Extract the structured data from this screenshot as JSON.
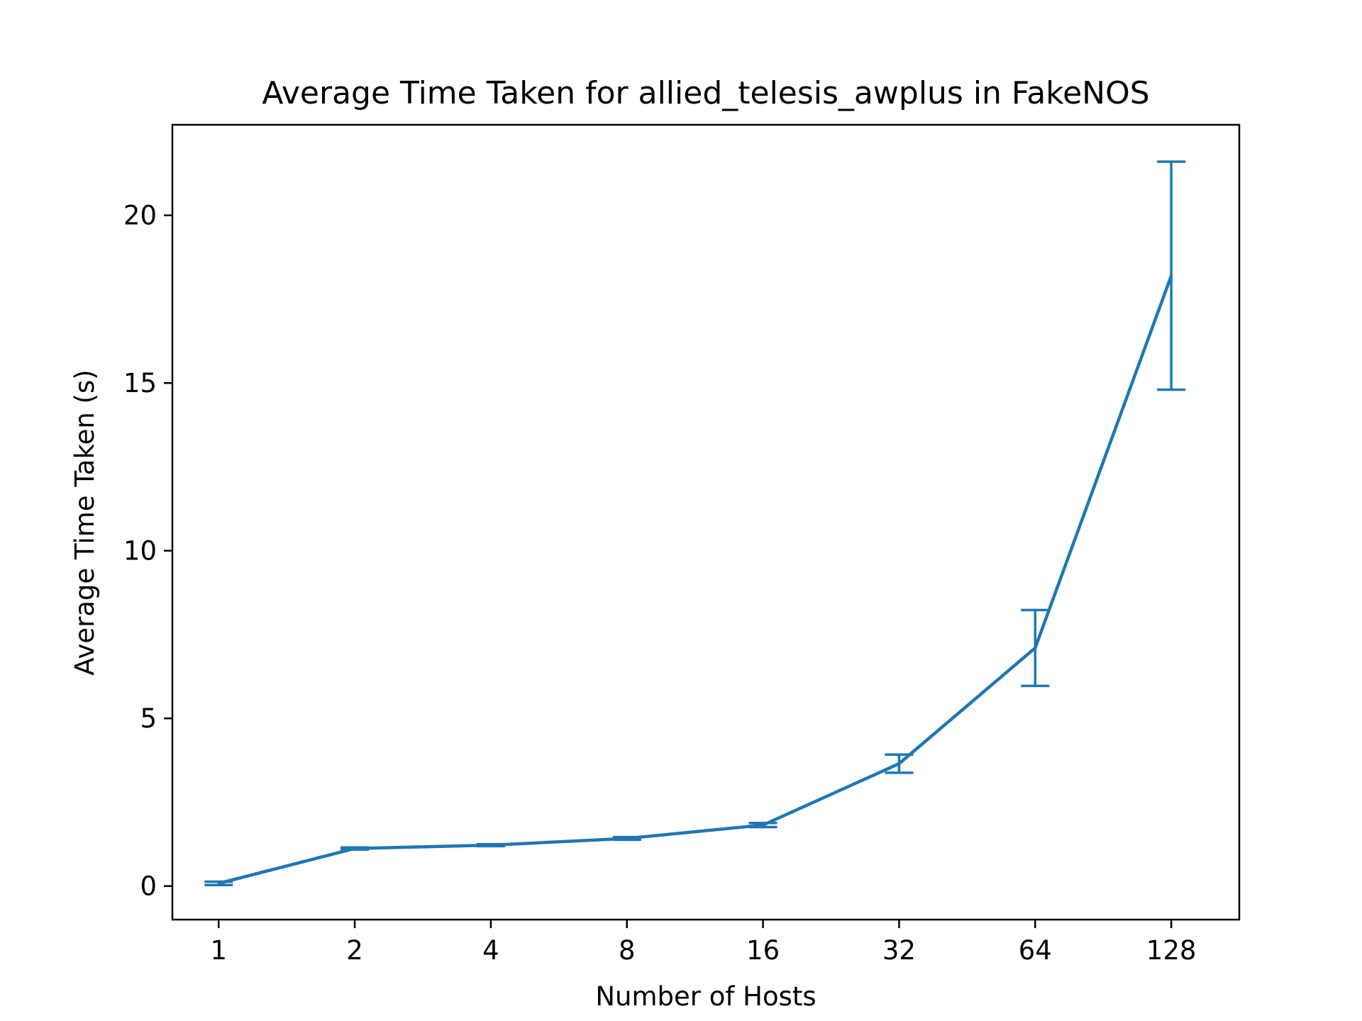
{
  "chart_data": {
    "type": "line",
    "title": "Average Time Taken for allied_telesis_awplus in FakeNOS",
    "xlabel": "Number of Hosts",
    "ylabel": "Average Time Taken (s)",
    "x_scale": "log2",
    "x": [
      1,
      2,
      4,
      8,
      16,
      32,
      64,
      128
    ],
    "x_tick_labels": [
      "1",
      "2",
      "4",
      "8",
      "16",
      "32",
      "64",
      "128"
    ],
    "y_ticks": [
      0,
      5,
      10,
      15,
      20
    ],
    "y_tick_labels": [
      "0",
      "5",
      "10",
      "15",
      "20"
    ],
    "xlim": [
      0.79,
      181
    ],
    "ylim": [
      -1.0,
      22.7
    ],
    "grid": false,
    "series": [
      {
        "values": [
          0.08,
          1.12,
          1.22,
          1.42,
          1.82,
          3.65,
          7.1,
          18.2
        ],
        "error": [
          0.05,
          0.03,
          0.03,
          0.04,
          0.06,
          0.27,
          1.13,
          3.4
        ],
        "color": "#1f77b4"
      }
    ]
  }
}
